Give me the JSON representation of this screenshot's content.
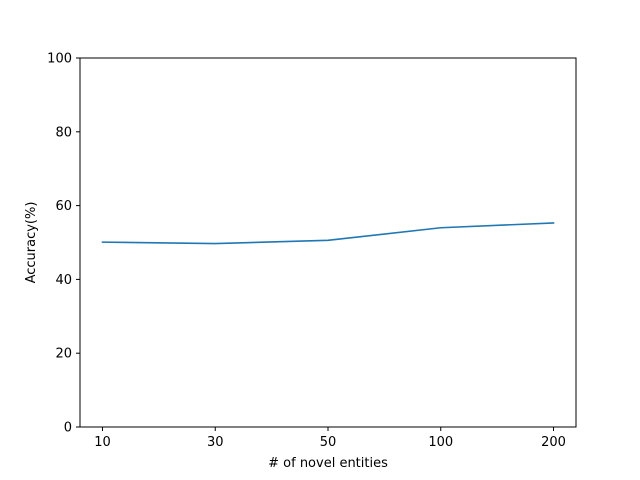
{
  "chart_data": {
    "type": "line",
    "title": "",
    "xlabel": "# of novel entities",
    "ylabel": "Accuracy(%)",
    "categories": [
      "10",
      "30",
      "50",
      "100",
      "200"
    ],
    "series": [
      {
        "values": [
          50.1,
          49.7,
          50.6,
          54.0,
          55.3
        ]
      }
    ],
    "ylim": [
      0,
      100
    ],
    "yticks": [
      0,
      20,
      40,
      60,
      80,
      100
    ],
    "grid": false,
    "colors": {
      "line": "#1f77b4",
      "axis": "#000000"
    }
  }
}
